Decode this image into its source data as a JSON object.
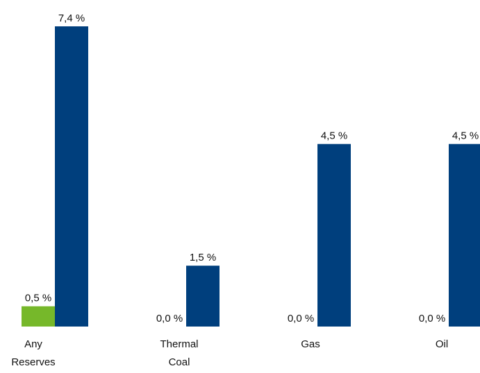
{
  "chart_data": {
    "type": "bar",
    "categories": [
      "Any Reserves",
      "Thermal Coal",
      "Gas",
      "Oil"
    ],
    "series": [
      {
        "color": "#76b82a",
        "values": [
          0.5,
          0.0,
          0.0,
          0.0
        ],
        "value_labels": [
          "0,5 %",
          "0,0 %",
          "0,0 %",
          "0,0 %"
        ]
      },
      {
        "color": "#003f7d",
        "values": [
          7.4,
          1.5,
          4.5,
          4.5
        ],
        "value_labels": [
          "7,4 %",
          "1,5 %",
          "4,5 %",
          "4,5 %"
        ]
      }
    ]
  }
}
